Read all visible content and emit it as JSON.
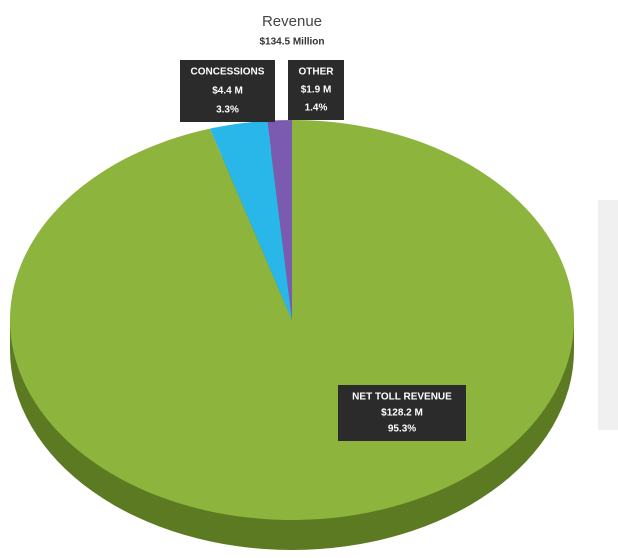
{
  "chart_data": {
    "type": "pie",
    "title": "Revenue",
    "subtitle": "$134.5 Million",
    "categories": [
      "NET TOLL REVENUE",
      "CONCESSIONS",
      "OTHER"
    ],
    "values": [
      95.3,
      3.3,
      1.4
    ],
    "value_labels": [
      "95.3%",
      "3.3%",
      "1.4%"
    ],
    "amounts": [
      "$128.2 M",
      "$4.4 M",
      "$1.9 M"
    ],
    "colors": [
      "#8db43c",
      "#29b6e8",
      "#7a5bb0"
    ]
  }
}
